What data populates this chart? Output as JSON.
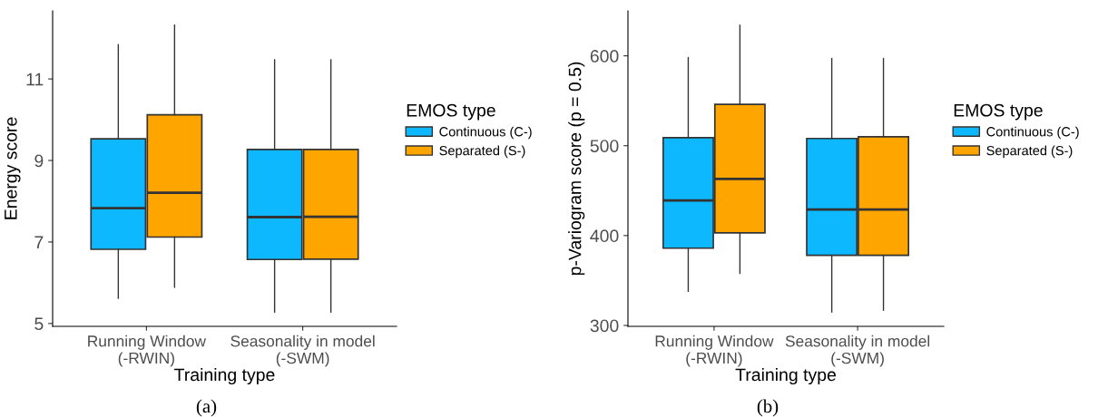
{
  "chart_data": [
    {
      "type": "box",
      "xlabel": "Training type",
      "ylabel": "Energy score",
      "legend_title": "EMOS type",
      "legend": "right",
      "grid": false,
      "categories": [
        "Running Window\n(-RWIN)",
        "Seasonality in model\n(-SWM)"
      ],
      "ylim": [
        4.93,
        12.67
      ],
      "yticks": [
        5,
        7,
        9,
        11
      ],
      "series": [
        {
          "name": "Continuous (C-)",
          "color": "#0db8ff",
          "boxes": [
            {
              "low": 5.62,
              "q1": 6.82,
              "median": 7.83,
              "q3": 9.53,
              "high": 11.84
            },
            {
              "low": 5.28,
              "q1": 6.57,
              "median": 7.61,
              "q3": 9.27,
              "high": 11.47
            }
          ]
        },
        {
          "name": "Separated (S-)",
          "color": "#ffa500",
          "boxes": [
            {
              "low": 5.89,
              "q1": 7.12,
              "median": 8.21,
              "q3": 10.12,
              "high": 12.32
            },
            {
              "low": 5.28,
              "q1": 6.58,
              "median": 7.62,
              "q3": 9.27,
              "high": 11.47
            }
          ]
        }
      ],
      "annotations": [
        "(a)"
      ]
    },
    {
      "type": "box",
      "xlabel": "Training type",
      "ylabel": "p-Variogram score (p = 0.5)",
      "legend_title": "EMOS type",
      "legend": "right",
      "grid": false,
      "categories": [
        "Running Window\n(-RWIN)",
        "Seasonality in model\n(-SWM)"
      ],
      "ylim": [
        299,
        650
      ],
      "yticks": [
        300,
        400,
        500,
        600
      ],
      "series": [
        {
          "name": "Continuous (C-)",
          "color": "#0db8ff",
          "boxes": [
            {
              "low": 338,
              "q1": 386,
              "median": 439,
              "q3": 509,
              "high": 598
            },
            {
              "low": 315,
              "q1": 378,
              "median": 429,
              "q3": 508,
              "high": 597
            }
          ]
        },
        {
          "name": "Separated (S-)",
          "color": "#ffa500",
          "boxes": [
            {
              "low": 358,
              "q1": 403,
              "median": 463,
              "q3": 546,
              "high": 634
            },
            {
              "low": 317,
              "q1": 378,
              "median": 429,
              "q3": 510,
              "high": 597
            }
          ]
        }
      ],
      "annotations": [
        "(b)"
      ]
    }
  ]
}
